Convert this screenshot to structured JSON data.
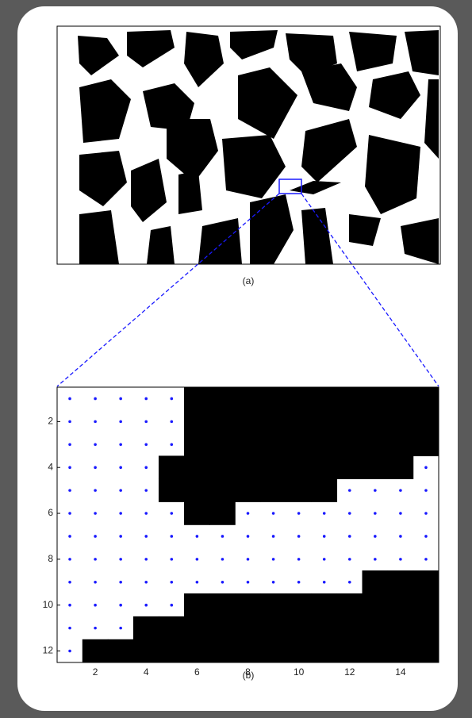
{
  "figure": {
    "panel_a": {
      "caption": "(a)"
    },
    "panel_b": {
      "caption": "(b)",
      "xlim": [
        0.5,
        15.5
      ],
      "ylim": [
        0.5,
        12.5
      ],
      "xticks": [
        2,
        4,
        6,
        8,
        10,
        12,
        14
      ],
      "yticks": [
        2,
        4,
        6,
        8,
        10,
        12
      ],
      "dot_color": "#1a1aff",
      "pixels": [
        [
          0,
          0,
          0,
          0,
          0,
          1,
          1,
          1,
          1,
          1,
          1,
          1,
          1,
          1,
          1
        ],
        [
          0,
          0,
          0,
          0,
          0,
          1,
          1,
          1,
          1,
          1,
          1,
          1,
          1,
          1,
          1
        ],
        [
          0,
          0,
          0,
          0,
          0,
          1,
          1,
          1,
          1,
          1,
          1,
          1,
          1,
          1,
          1
        ],
        [
          0,
          0,
          0,
          0,
          1,
          1,
          1,
          1,
          1,
          1,
          1,
          1,
          1,
          1,
          0
        ],
        [
          0,
          0,
          0,
          0,
          1,
          1,
          1,
          1,
          1,
          1,
          1,
          0,
          0,
          0,
          0
        ],
        [
          0,
          0,
          0,
          0,
          0,
          1,
          1,
          0,
          0,
          0,
          0,
          0,
          0,
          0,
          0
        ],
        [
          0,
          0,
          0,
          0,
          0,
          0,
          0,
          0,
          0,
          0,
          0,
          0,
          0,
          0,
          0
        ],
        [
          0,
          0,
          0,
          0,
          0,
          0,
          0,
          0,
          0,
          0,
          0,
          0,
          0,
          0,
          0
        ],
        [
          0,
          0,
          0,
          0,
          0,
          0,
          0,
          0,
          0,
          0,
          0,
          0,
          1,
          1,
          1
        ],
        [
          0,
          0,
          0,
          0,
          0,
          1,
          1,
          1,
          1,
          1,
          1,
          1,
          1,
          1,
          1
        ],
        [
          0,
          0,
          0,
          1,
          1,
          1,
          1,
          1,
          1,
          1,
          1,
          1,
          1,
          1,
          1
        ],
        [
          0,
          1,
          1,
          1,
          1,
          1,
          1,
          1,
          1,
          1,
          1,
          1,
          1,
          1,
          1
        ]
      ]
    }
  }
}
